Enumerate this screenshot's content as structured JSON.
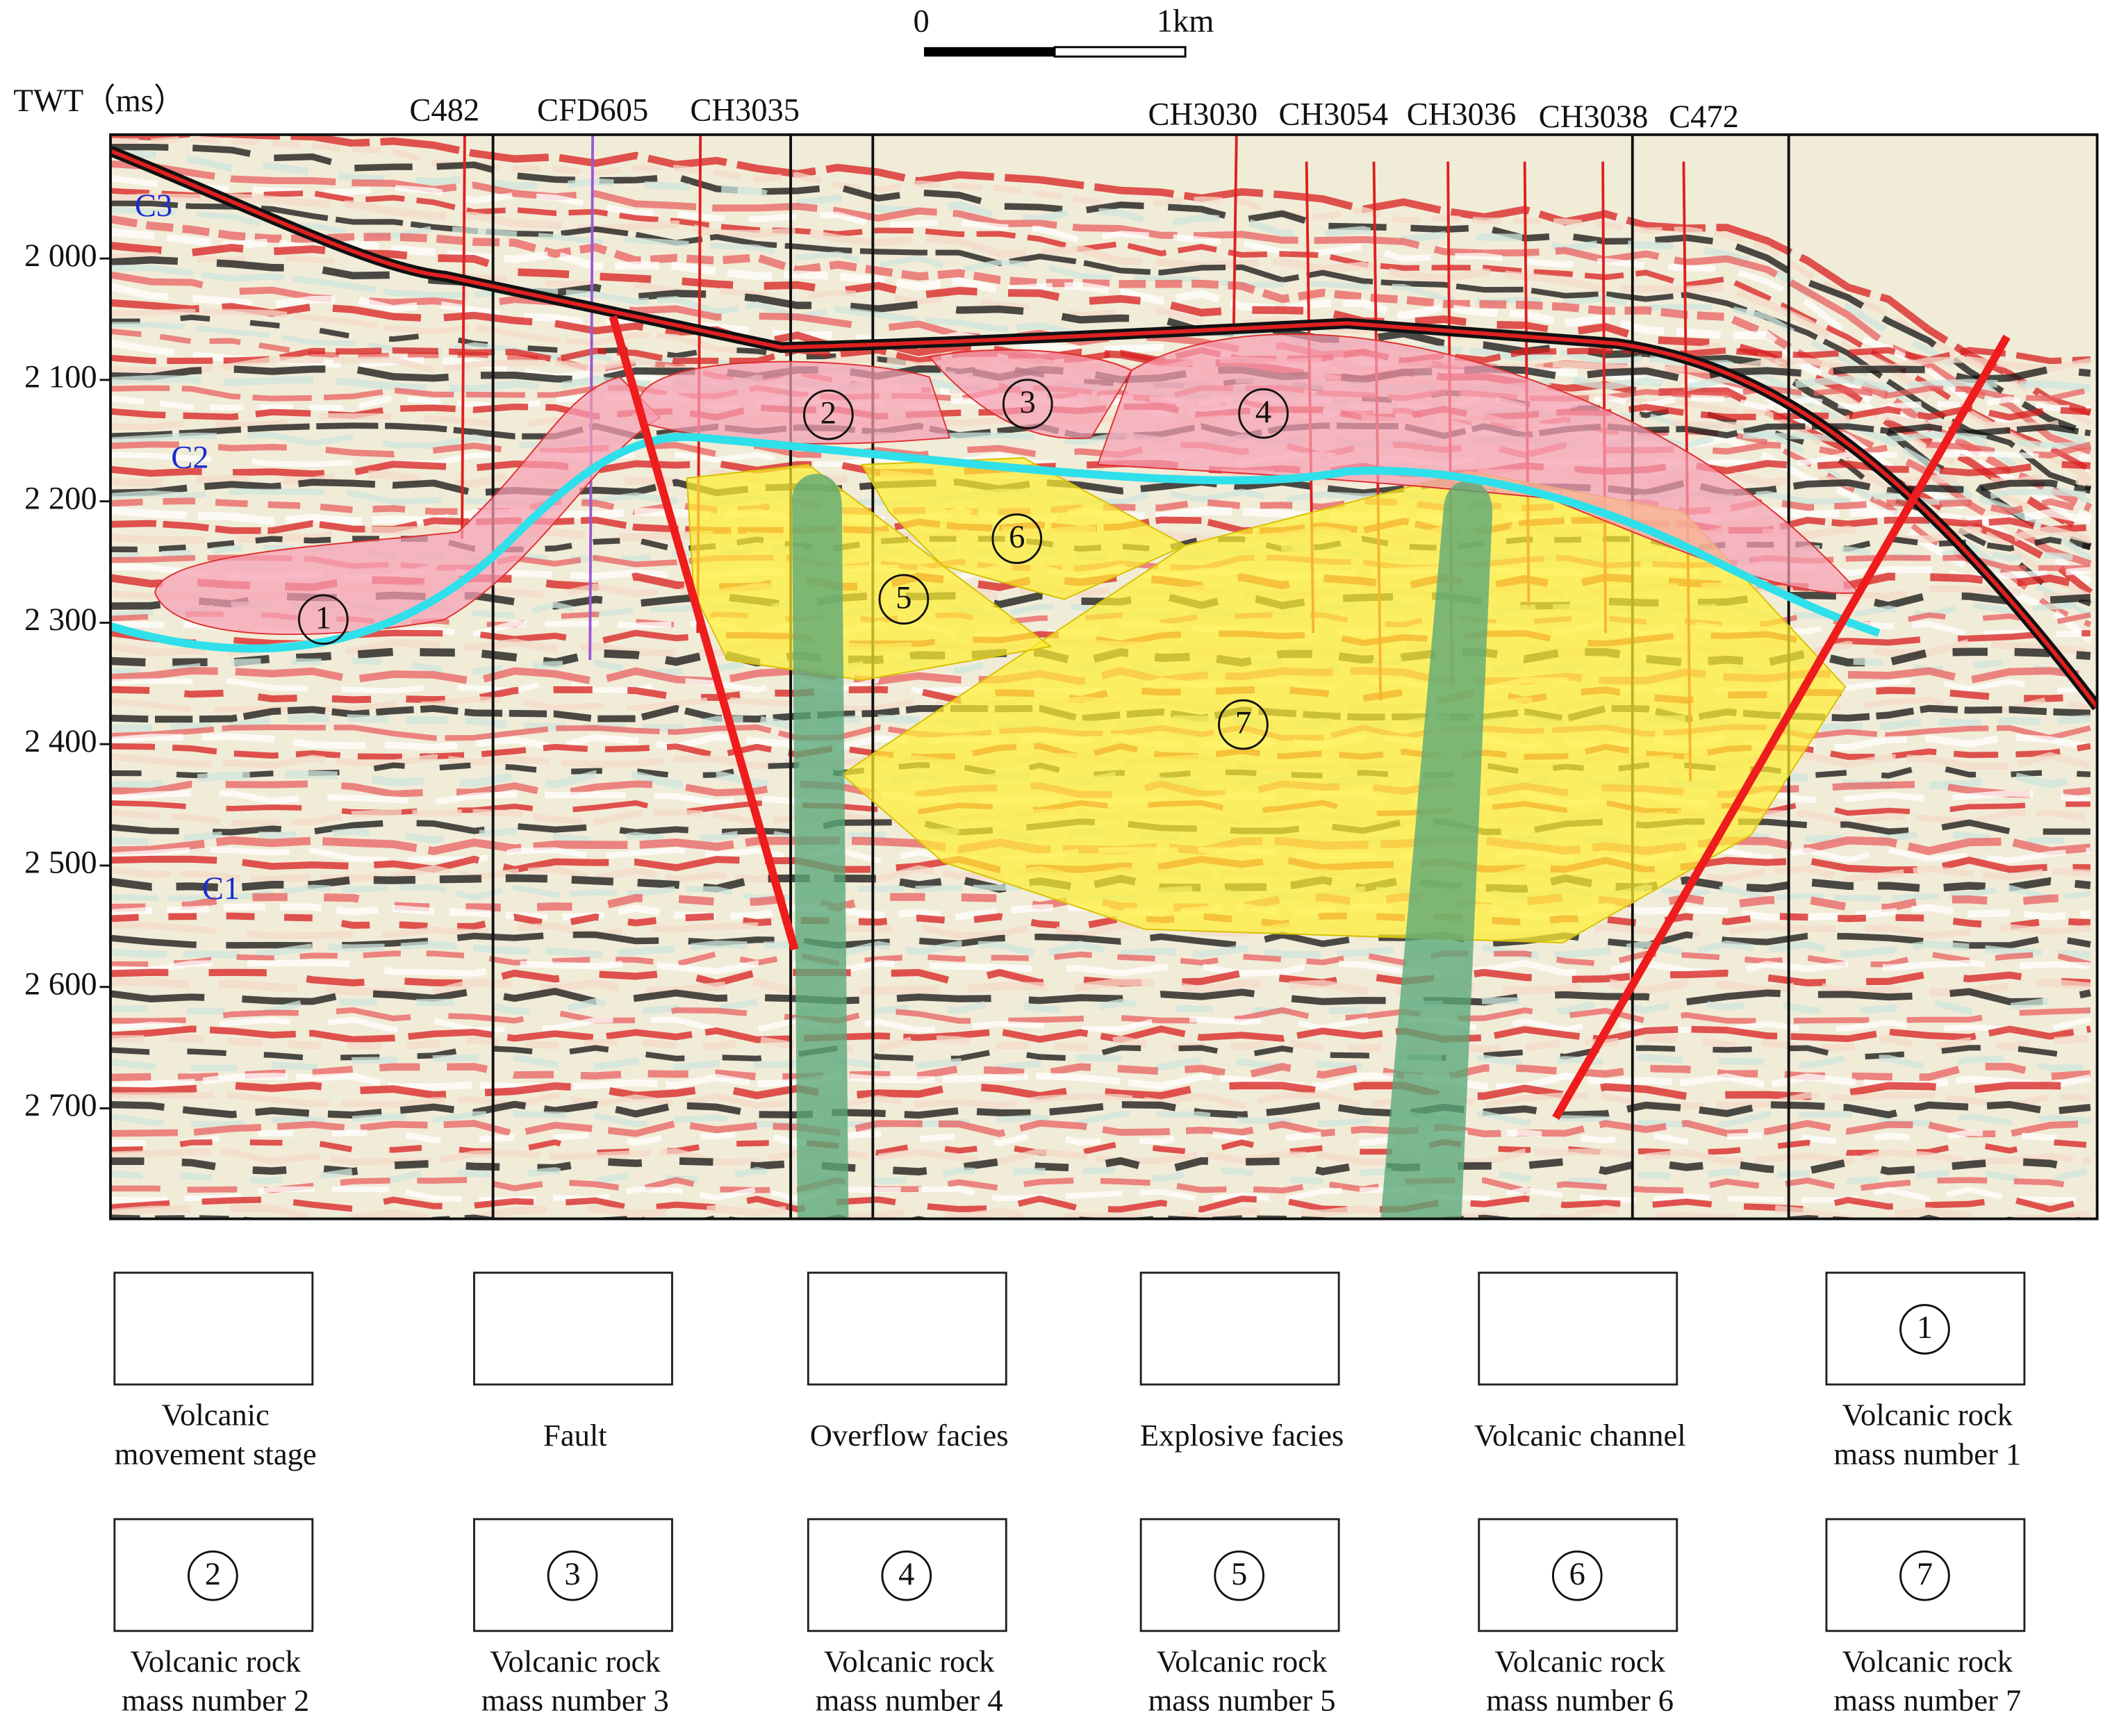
{
  "scale_bar": {
    "start": "0",
    "end": "1km"
  },
  "axis": {
    "title": "TWT（ms）",
    "ylim": [
      1898,
      2791
    ],
    "ticks": [
      {
        "value": 2000,
        "label": "2 000"
      },
      {
        "value": 2100,
        "label": "2 100"
      },
      {
        "value": 2200,
        "label": "2 200"
      },
      {
        "value": 2300,
        "label": "2 300"
      },
      {
        "value": 2400,
        "label": "2 400"
      },
      {
        "value": 2500,
        "label": "2 500"
      },
      {
        "value": 2600,
        "label": "2 600"
      },
      {
        "value": 2700,
        "label": "2 700"
      }
    ]
  },
  "wells": [
    "C482",
    "CFD605",
    "CH3035",
    "CH3030",
    "CH3054",
    "CH3036",
    "CH3038",
    "C472"
  ],
  "stages": [
    "C3",
    "C2",
    "C1"
  ],
  "masses": [
    "1",
    "2",
    "3",
    "4",
    "5",
    "6",
    "7"
  ],
  "legend": [
    {
      "lines": [
        "Volcanic",
        "movement stage"
      ]
    },
    {
      "lines": [
        "Fault"
      ]
    },
    {
      "lines": [
        "Overflow facies"
      ]
    },
    {
      "lines": [
        "Explosive facies"
      ]
    },
    {
      "lines": [
        "Volcanic channel"
      ]
    },
    {
      "number": "1",
      "lines": [
        "Volcanic rock",
        "mass number 1"
      ]
    },
    {
      "number": "2",
      "lines": [
        "Volcanic rock",
        "mass number 2"
      ]
    },
    {
      "number": "3",
      "lines": [
        "Volcanic rock",
        "mass number 3"
      ]
    },
    {
      "number": "4",
      "lines": [
        "Volcanic rock",
        "mass number 4"
      ]
    },
    {
      "number": "5",
      "lines": [
        "Volcanic rock",
        "mass number 5"
      ]
    },
    {
      "number": "6",
      "lines": [
        "Volcanic rock",
        "mass number 6"
      ]
    },
    {
      "number": "7",
      "lines": [
        "Volcanic rock",
        "mass number 7"
      ]
    }
  ]
}
